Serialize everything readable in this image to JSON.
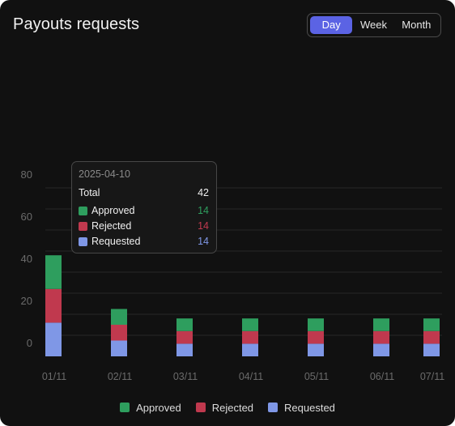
{
  "header": {
    "title": "Payouts requests"
  },
  "range": {
    "options": [
      "Day",
      "Week",
      "Month"
    ],
    "selected": "Day"
  },
  "colors": {
    "approved": "#2e9e5e",
    "rejected": "#c0394e",
    "requested": "#7f97e6"
  },
  "chart_data": {
    "type": "bar",
    "stacked": true,
    "categories": [
      "01/11",
      "02/11",
      "03/11",
      "04/11",
      "05/11",
      "06/11",
      "07/11"
    ],
    "series": [
      {
        "name": "Requested",
        "values": [
          16,
          7.5,
          6,
          6,
          6,
          6,
          6
        ]
      },
      {
        "name": "Rejected",
        "values": [
          16,
          7.5,
          6,
          6,
          6,
          6,
          6
        ]
      },
      {
        "name": "Approved",
        "values": [
          16,
          7.5,
          6,
          6,
          6,
          6,
          6
        ]
      }
    ],
    "ylim": [
      0,
      80
    ],
    "yticks": [
      0,
      20,
      40,
      60,
      80
    ],
    "grid": true,
    "legend_position": "bottom"
  },
  "tooltip": {
    "date": "2025-04-10",
    "total_label": "Total",
    "total_value": "42",
    "rows": [
      {
        "label": "Approved",
        "value": "14",
        "color": "#2e9e5e"
      },
      {
        "label": "Rejected",
        "value": "14",
        "color": "#c0394e"
      },
      {
        "label": "Requested",
        "value": "14",
        "color": "#7f97e6"
      }
    ]
  },
  "legend": [
    "Approved",
    "Rejected",
    "Requested"
  ]
}
